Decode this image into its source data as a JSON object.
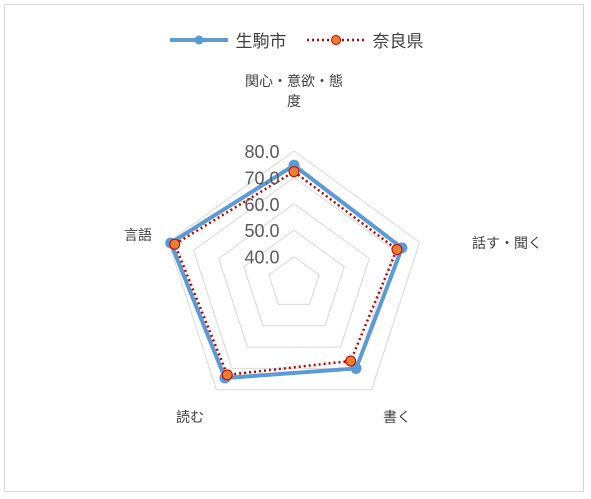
{
  "chart_data": {
    "type": "radar",
    "axes": [
      "関心・意欲・態度",
      "話す・聞く",
      "書く",
      "読む",
      "言語"
    ],
    "axis_label_lines": [
      [
        "関心・意欲・態",
        "度"
      ],
      [
        "話す・聞く"
      ],
      [
        "書く"
      ],
      [
        "読む"
      ],
      [
        "言語"
      ]
    ],
    "ticks": [
      40.0,
      50.0,
      60.0,
      70.0,
      80.0
    ],
    "tick_labels": [
      "40.0",
      "50.0",
      "60.0",
      "70.0",
      "80.0"
    ],
    "range": [
      30,
      80
    ],
    "series": [
      {
        "name": "生駒市",
        "values": [
          74.6,
          73.0,
          70.0,
          74.5,
          79.1
        ],
        "color": "#5B9BD5",
        "style": "solid-circle"
      },
      {
        "name": "奈良県",
        "values": [
          72.2,
          71.0,
          66.5,
          73.0,
          77.5
        ],
        "color": "#ED7D31",
        "line_color": "#C00000",
        "style": "dotted-circle"
      }
    ],
    "legend_position": "top",
    "grid": true
  }
}
